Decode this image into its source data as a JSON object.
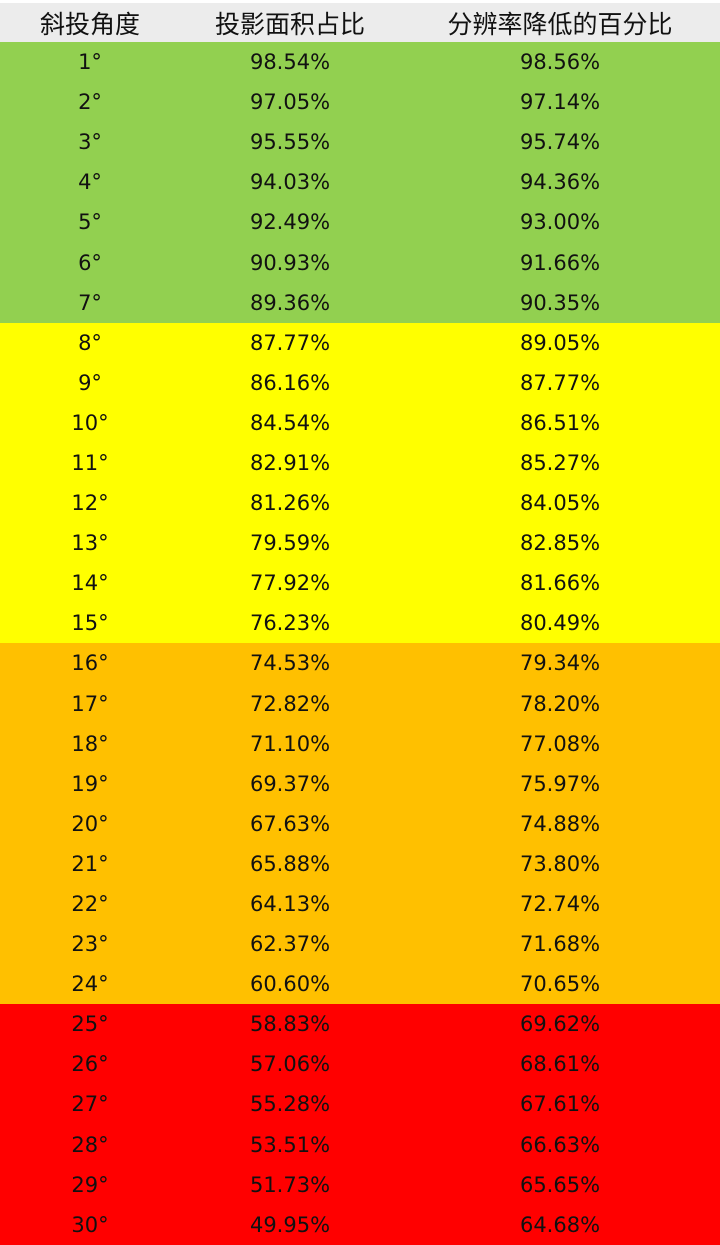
{
  "chart_data": {
    "type": "table",
    "columns": [
      "斜投角度",
      "投影面积占比",
      "分辨率降低的百分比"
    ],
    "band_colors": {
      "green": "#92D050",
      "yellow": "#FFFF00",
      "orange": "#FFC000",
      "red": "#FF0000"
    },
    "rows": [
      {
        "angle": "1°",
        "area": "98.54%",
        "res": "98.56%",
        "band": "green"
      },
      {
        "angle": "2°",
        "area": "97.05%",
        "res": "97.14%",
        "band": "green"
      },
      {
        "angle": "3°",
        "area": "95.55%",
        "res": "95.74%",
        "band": "green"
      },
      {
        "angle": "4°",
        "area": "94.03%",
        "res": "94.36%",
        "band": "green"
      },
      {
        "angle": "5°",
        "area": "92.49%",
        "res": "93.00%",
        "band": "green"
      },
      {
        "angle": "6°",
        "area": "90.93%",
        "res": "91.66%",
        "band": "green"
      },
      {
        "angle": "7°",
        "area": "89.36%",
        "res": "90.35%",
        "band": "green"
      },
      {
        "angle": "8°",
        "area": "87.77%",
        "res": "89.05%",
        "band": "yellow"
      },
      {
        "angle": "9°",
        "area": "86.16%",
        "res": "87.77%",
        "band": "yellow"
      },
      {
        "angle": "10°",
        "area": "84.54%",
        "res": "86.51%",
        "band": "yellow"
      },
      {
        "angle": "11°",
        "area": "82.91%",
        "res": "85.27%",
        "band": "yellow"
      },
      {
        "angle": "12°",
        "area": "81.26%",
        "res": "84.05%",
        "band": "yellow"
      },
      {
        "angle": "13°",
        "area": "79.59%",
        "res": "82.85%",
        "band": "yellow"
      },
      {
        "angle": "14°",
        "area": "77.92%",
        "res": "81.66%",
        "band": "yellow"
      },
      {
        "angle": "15°",
        "area": "76.23%",
        "res": "80.49%",
        "band": "yellow"
      },
      {
        "angle": "16°",
        "area": "74.53%",
        "res": "79.34%",
        "band": "orange"
      },
      {
        "angle": "17°",
        "area": "72.82%",
        "res": "78.20%",
        "band": "orange"
      },
      {
        "angle": "18°",
        "area": "71.10%",
        "res": "77.08%",
        "band": "orange"
      },
      {
        "angle": "19°",
        "area": "69.37%",
        "res": "75.97%",
        "band": "orange"
      },
      {
        "angle": "20°",
        "area": "67.63%",
        "res": "74.88%",
        "band": "orange"
      },
      {
        "angle": "21°",
        "area": "65.88%",
        "res": "73.80%",
        "band": "orange"
      },
      {
        "angle": "22°",
        "area": "64.13%",
        "res": "72.74%",
        "band": "orange"
      },
      {
        "angle": "23°",
        "area": "62.37%",
        "res": "71.68%",
        "band": "orange"
      },
      {
        "angle": "24°",
        "area": "60.60%",
        "res": "70.65%",
        "band": "orange"
      },
      {
        "angle": "25°",
        "area": "58.83%",
        "res": "69.62%",
        "band": "red"
      },
      {
        "angle": "26°",
        "area": "57.06%",
        "res": "68.61%",
        "band": "red"
      },
      {
        "angle": "27°",
        "area": "55.28%",
        "res": "67.61%",
        "band": "red"
      },
      {
        "angle": "28°",
        "area": "53.51%",
        "res": "66.63%",
        "band": "red"
      },
      {
        "angle": "29°",
        "area": "51.73%",
        "res": "65.65%",
        "band": "red"
      },
      {
        "angle": "30°",
        "area": "49.95%",
        "res": "64.68%",
        "band": "red"
      }
    ]
  }
}
